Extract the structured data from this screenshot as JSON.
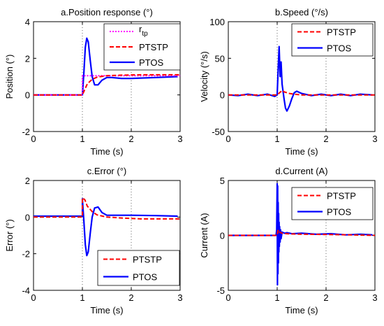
{
  "figure": {
    "background": "#ffffff",
    "series_colors": {
      "r_tp": "#ff00ff",
      "PTSTP": "#ff0000",
      "PTOS": "#0000ff"
    }
  },
  "chart_data": [
    {
      "id": "a",
      "type": "line",
      "title": "a.Position response (°)",
      "xlabel": "Time (s)",
      "ylabel": "Position (°)",
      "xlim": [
        0,
        3
      ],
      "ylim": [
        -2,
        4
      ],
      "xticks": [
        0,
        1,
        2,
        3
      ],
      "yticks": [
        -2,
        0,
        2,
        4
      ],
      "vgrid_at": [
        1,
        2
      ],
      "legend": {
        "position": "top-right",
        "entries": [
          "r_tp",
          "PTSTP",
          "PTOS"
        ]
      },
      "series": [
        {
          "name": "r_tp",
          "label_main": "r",
          "label_sub": "tp",
          "color": "#ff00ff",
          "style": "dotted",
          "x": [
            0,
            1.0,
            1.0,
            3.0
          ],
          "y": [
            0,
            0,
            1.05,
            1.05
          ]
        },
        {
          "name": "PTSTP",
          "color": "#ff0000",
          "style": "dashed",
          "x": [
            0,
            1.0,
            1.05,
            1.1,
            1.2,
            1.3,
            1.5,
            1.8,
            2.2,
            2.6,
            3.0
          ],
          "y": [
            0,
            0,
            0.3,
            0.6,
            0.85,
            0.97,
            1.05,
            1.08,
            1.1,
            1.1,
            1.1
          ]
        },
        {
          "name": "PTOS",
          "color": "#0000ff",
          "style": "solid",
          "x": [
            0,
            1.0,
            1.03,
            1.06,
            1.09,
            1.12,
            1.16,
            1.2,
            1.25,
            1.32,
            1.4,
            1.5,
            1.6,
            1.8,
            2.0,
            2.5,
            2.95
          ],
          "y": [
            0,
            0,
            1.2,
            2.6,
            3.1,
            2.9,
            1.9,
            1.0,
            0.55,
            0.55,
            0.8,
            0.95,
            0.95,
            0.9,
            0.9,
            0.95,
            1.0
          ]
        }
      ]
    },
    {
      "id": "b",
      "type": "line",
      "title": "b.Speed (°/s)",
      "xlabel": "Time (s)",
      "ylabel": "Velocity (°/s)",
      "xlim": [
        0,
        3
      ],
      "ylim": [
        -50,
        100
      ],
      "xticks": [
        0,
        1,
        2,
        3
      ],
      "yticks": [
        -50,
        0,
        50,
        100
      ],
      "vgrid_at": [
        1,
        2
      ],
      "legend": {
        "position": "top-right",
        "entries": [
          "PTSTP",
          "PTOS"
        ]
      },
      "series": [
        {
          "name": "PTSTP",
          "color": "#ff0000",
          "style": "dashed",
          "x": [
            0,
            1.0,
            1.05,
            1.1,
            1.15,
            1.25,
            1.35,
            1.5,
            2.0,
            3.0
          ],
          "y": [
            0,
            0,
            3,
            6,
            4,
            2,
            1,
            0,
            0,
            0
          ]
        },
        {
          "name": "PTOS",
          "color": "#0000ff",
          "style": "solid",
          "x": [
            0,
            0.2,
            0.4,
            0.6,
            0.8,
            0.95,
            1.0,
            1.02,
            1.04,
            1.06,
            1.08,
            1.1,
            1.12,
            1.14,
            1.17,
            1.2,
            1.25,
            1.3,
            1.35,
            1.4,
            1.5,
            1.7,
            1.9,
            2.1,
            2.3,
            2.5,
            2.7,
            2.95
          ],
          "y": [
            0,
            -1,
            1,
            -1,
            1,
            -2,
            0,
            35,
            66,
            25,
            45,
            15,
            5,
            -5,
            -18,
            -22,
            -15,
            -5,
            3,
            5,
            2,
            -1,
            1,
            -1,
            1,
            -1,
            1,
            0
          ]
        }
      ]
    },
    {
      "id": "c",
      "type": "line",
      "title": "c.Error (°)",
      "xlabel": "Time (s)",
      "ylabel": "Error (°)",
      "xlim": [
        0,
        3
      ],
      "ylim": [
        -4,
        2
      ],
      "xticks": [
        0,
        1,
        2,
        3
      ],
      "yticks": [
        -4,
        -2,
        0,
        2
      ],
      "vgrid_at": [
        1,
        2
      ],
      "legend": {
        "position": "bottom-right",
        "entries": [
          "PTSTP",
          "PTOS"
        ]
      },
      "series": [
        {
          "name": "PTSTP",
          "color": "#ff0000",
          "style": "dashed",
          "x": [
            0,
            1.0,
            1.0,
            1.05,
            1.1,
            1.2,
            1.3,
            1.5,
            1.8,
            2.2,
            2.6,
            3.0
          ],
          "y": [
            0,
            0,
            1.05,
            0.95,
            0.6,
            0.3,
            0.12,
            0.0,
            -0.05,
            -0.1,
            -0.1,
            -0.1
          ]
        },
        {
          "name": "PTOS",
          "color": "#0000ff",
          "style": "solid",
          "x": [
            0,
            1.0,
            1.0,
            1.03,
            1.06,
            1.09,
            1.12,
            1.16,
            1.2,
            1.25,
            1.32,
            1.4,
            1.5,
            1.6,
            1.8,
            2.0,
            2.5,
            2.95
          ],
          "y": [
            0.05,
            0.05,
            1.0,
            -0.2,
            -1.5,
            -2.1,
            -1.9,
            -0.9,
            0.0,
            0.5,
            0.55,
            0.25,
            0.1,
            0.1,
            0.1,
            0.1,
            0.08,
            0.05
          ]
        }
      ]
    },
    {
      "id": "d",
      "type": "line",
      "title": "d.Current (A)",
      "xlabel": "Time (s)",
      "ylabel": "Current (A)",
      "xlim": [
        0,
        3
      ],
      "ylim": [
        -5,
        5
      ],
      "xticks": [
        0,
        1,
        2,
        3
      ],
      "yticks": [
        -5,
        0,
        5
      ],
      "vgrid_at": [
        1,
        2
      ],
      "legend": {
        "position": "top-right",
        "entries": [
          "PTSTP",
          "PTOS"
        ]
      },
      "series": [
        {
          "name": "PTSTP",
          "color": "#ff0000",
          "style": "dashed",
          "x": [
            0,
            1.0,
            1.02,
            1.05,
            1.1,
            1.2,
            1.4,
            2.0,
            2.5,
            3.0
          ],
          "y": [
            0,
            0,
            0.5,
            0.3,
            0.2,
            0.15,
            0.12,
            0.08,
            0.05,
            0.0
          ]
        },
        {
          "name": "PTOS",
          "color": "#0000ff",
          "style": "solid",
          "x": [
            0,
            0.97,
            0.98,
            0.99,
            1.0,
            1.005,
            1.01,
            1.015,
            1.02,
            1.025,
            1.03,
            1.035,
            1.04,
            1.045,
            1.05,
            1.06,
            1.07,
            1.08,
            1.1,
            1.15,
            1.2,
            1.3,
            1.5,
            1.8,
            2.1,
            2.4,
            2.7,
            2.95
          ],
          "y": [
            0,
            0,
            0.1,
            0.5,
            4.7,
            -4.5,
            4.5,
            -3.5,
            3.0,
            -2.5,
            2.0,
            -1.5,
            1.2,
            -1.0,
            0.8,
            -0.6,
            0.5,
            -0.3,
            0.3,
            0.2,
            0.25,
            0.15,
            0.2,
            0.1,
            0.15,
            0.05,
            0.1,
            0.05
          ]
        }
      ]
    }
  ]
}
